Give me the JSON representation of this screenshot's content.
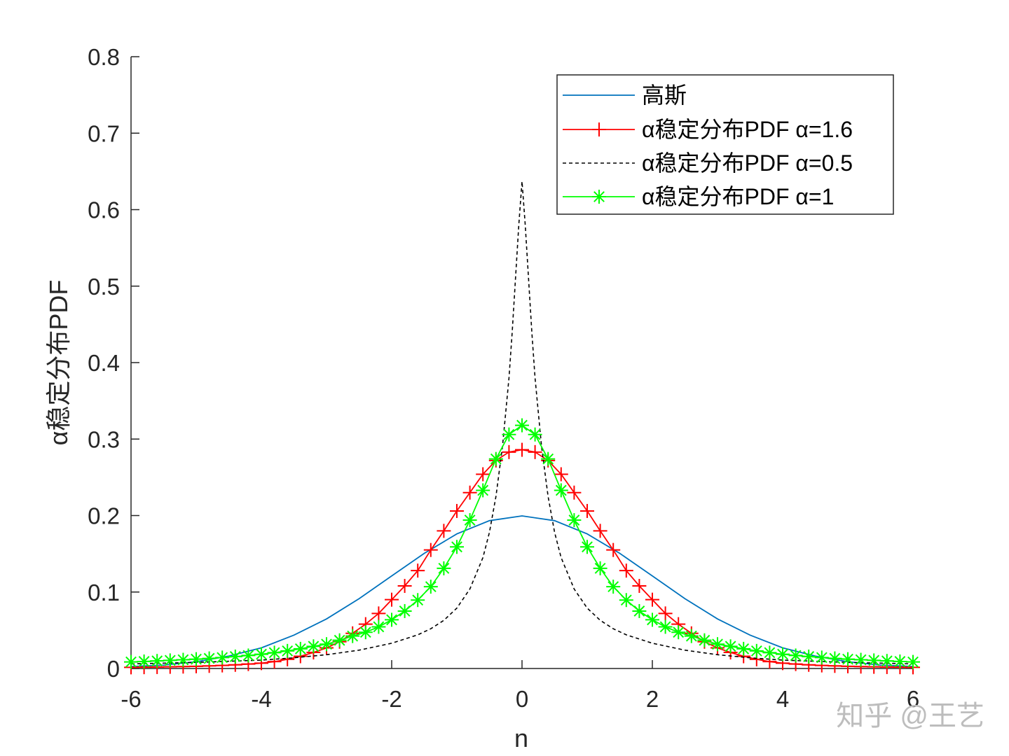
{
  "chart_data": {
    "type": "line",
    "xlabel": "n",
    "ylabel": "α稳定分布PDF",
    "xlim": [
      -6,
      6
    ],
    "ylim": [
      0,
      0.8
    ],
    "xticks": [
      -6,
      -4,
      -2,
      0,
      2,
      4,
      6
    ],
    "yticks": [
      0,
      0.1,
      0.2,
      0.3,
      0.4,
      0.5,
      0.6,
      0.7,
      0.8
    ],
    "xtick_labels": [
      "-6",
      "-4",
      "-2",
      "0",
      "2",
      "4",
      "6"
    ],
    "ytick_labels": [
      "0",
      "0.1",
      "0.2",
      "0.3",
      "0.4",
      "0.5",
      "0.6",
      "0.7",
      "0.8"
    ],
    "grid": false,
    "legend_position": "top-right",
    "series": [
      {
        "name": "高斯",
        "color": "#0072bd",
        "style": "solid",
        "marker": "none",
        "x": [
          -6,
          -5.5,
          -5,
          -4.5,
          -4,
          -3.5,
          -3,
          -2.5,
          -2,
          -1.5,
          -1,
          -0.5,
          0,
          0.5,
          1,
          1.5,
          2,
          2.5,
          3,
          3.5,
          4,
          4.5,
          5,
          5.5,
          6
        ],
        "y": [
          0.0027,
          0.0045,
          0.0088,
          0.0163,
          0.027,
          0.0437,
          0.0648,
          0.0913,
          0.121,
          0.1506,
          0.176,
          0.1933,
          0.1995,
          0.1933,
          0.176,
          0.1506,
          0.121,
          0.0913,
          0.0648,
          0.0437,
          0.027,
          0.0163,
          0.0088,
          0.0045,
          0.0027
        ]
      },
      {
        "name": "α稳定分布PDF α=1.6",
        "color": "#ff0000",
        "style": "solid",
        "marker": "+",
        "x": [
          -6,
          -5.8,
          -5.6,
          -5.4,
          -5.2,
          -5,
          -4.8,
          -4.6,
          -4.4,
          -4.2,
          -4,
          -3.8,
          -3.6,
          -3.4,
          -3.2,
          -3,
          -2.8,
          -2.6,
          -2.4,
          -2.2,
          -2,
          -1.8,
          -1.6,
          -1.4,
          -1.2,
          -1,
          -0.8,
          -0.6,
          -0.4,
          -0.2,
          0,
          0.2,
          0.4,
          0.6,
          0.8,
          1,
          1.2,
          1.4,
          1.6,
          1.8,
          2,
          2.2,
          2.4,
          2.6,
          2.8,
          3,
          3.2,
          3.4,
          3.6,
          3.8,
          4,
          4.2,
          4.4,
          4.6,
          4.8,
          5,
          5.2,
          5.4,
          5.6,
          5.8,
          6
        ],
        "y": [
          0.0015,
          0.0017,
          0.0019,
          0.0022,
          0.0025,
          0.0029,
          0.0034,
          0.004,
          0.0048,
          0.0058,
          0.007,
          0.009,
          0.012,
          0.016,
          0.021,
          0.027,
          0.035,
          0.046,
          0.058,
          0.072,
          0.09,
          0.108,
          0.128,
          0.155,
          0.18,
          0.206,
          0.23,
          0.254,
          0.272,
          0.283,
          0.286,
          0.283,
          0.272,
          0.254,
          0.23,
          0.206,
          0.18,
          0.155,
          0.128,
          0.108,
          0.09,
          0.072,
          0.058,
          0.046,
          0.035,
          0.027,
          0.021,
          0.016,
          0.012,
          0.009,
          0.007,
          0.0058,
          0.0048,
          0.004,
          0.0034,
          0.0029,
          0.0025,
          0.0022,
          0.0019,
          0.0017,
          0.0015
        ]
      },
      {
        "name": "α稳定分布PDF α=0.5",
        "color": "#000000",
        "style": "dashed",
        "marker": "none",
        "x": [
          -6,
          -5,
          -4,
          -3.5,
          -3,
          -2.5,
          -2,
          -1.6,
          -1.4,
          -1.2,
          -1,
          -0.8,
          -0.6,
          -0.5,
          -0.4,
          -0.3,
          -0.2,
          -0.15,
          -0.1,
          -0.05,
          0,
          0.05,
          0.1,
          0.15,
          0.2,
          0.3,
          0.4,
          0.5,
          0.6,
          0.8,
          1,
          1.2,
          1.4,
          1.6,
          2,
          2.5,
          3,
          3.5,
          4,
          5,
          6
        ],
        "y": [
          0.006,
          0.008,
          0.011,
          0.014,
          0.018,
          0.024,
          0.033,
          0.044,
          0.052,
          0.063,
          0.079,
          0.104,
          0.145,
          0.178,
          0.225,
          0.29,
          0.38,
          0.44,
          0.51,
          0.58,
          0.637,
          0.58,
          0.51,
          0.44,
          0.38,
          0.29,
          0.225,
          0.178,
          0.145,
          0.104,
          0.079,
          0.063,
          0.052,
          0.044,
          0.033,
          0.024,
          0.018,
          0.014,
          0.011,
          0.008,
          0.006
        ]
      },
      {
        "name": "α稳定分布PDF α=1",
        "color": "#00ff00",
        "style": "solid",
        "marker": "*",
        "x": [
          -6,
          -5.8,
          -5.6,
          -5.4,
          -5.2,
          -5,
          -4.8,
          -4.6,
          -4.4,
          -4.2,
          -4,
          -3.8,
          -3.6,
          -3.4,
          -3.2,
          -3,
          -2.8,
          -2.6,
          -2.4,
          -2.2,
          -2,
          -1.8,
          -1.6,
          -1.4,
          -1.2,
          -1,
          -0.8,
          -0.6,
          -0.4,
          -0.2,
          0,
          0.2,
          0.4,
          0.6,
          0.8,
          1,
          1.2,
          1.4,
          1.6,
          1.8,
          2,
          2.2,
          2.4,
          2.6,
          2.8,
          3,
          3.2,
          3.4,
          3.6,
          3.8,
          4,
          4.2,
          4.4,
          4.6,
          4.8,
          5,
          5.2,
          5.4,
          5.6,
          5.8,
          6
        ],
        "y": [
          0.0086,
          0.0092,
          0.0099,
          0.0106,
          0.0114,
          0.0122,
          0.0132,
          0.0143,
          0.0156,
          0.017,
          0.0187,
          0.0207,
          0.023,
          0.0257,
          0.029,
          0.0318,
          0.0369,
          0.0424,
          0.0474,
          0.0545,
          0.0637,
          0.0751,
          0.0895,
          0.107,
          0.131,
          0.159,
          0.194,
          0.233,
          0.274,
          0.306,
          0.318,
          0.306,
          0.274,
          0.233,
          0.194,
          0.159,
          0.131,
          0.107,
          0.0895,
          0.0751,
          0.0637,
          0.0545,
          0.0474,
          0.0424,
          0.0369,
          0.0318,
          0.029,
          0.0257,
          0.023,
          0.0207,
          0.0187,
          0.017,
          0.0156,
          0.0143,
          0.0132,
          0.0122,
          0.0114,
          0.0106,
          0.0099,
          0.0092,
          0.0086
        ]
      }
    ]
  },
  "watermark": "知乎 @王艺"
}
